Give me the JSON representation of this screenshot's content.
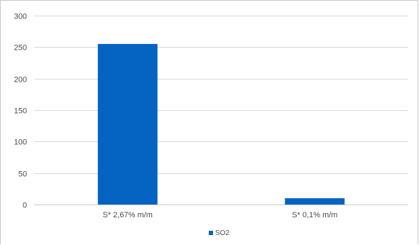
{
  "chart_data": {
    "type": "bar",
    "categories": [
      "S* 2,67% m/m",
      "S* 0,1% m/m"
    ],
    "series": [
      {
        "name": "SO2",
        "values": [
          255,
          10
        ]
      }
    ],
    "title": "",
    "xlabel": "",
    "ylabel": "",
    "ylim": [
      0,
      300
    ],
    "yticks": [
      0,
      50,
      100,
      150,
      200,
      250,
      300
    ],
    "grid": true,
    "legend": "bottom-center",
    "colors": {
      "bar": "#0563c1",
      "grid": "#d9d9d9",
      "axis": "#c8c8c8",
      "text": "#4a4a4a"
    }
  }
}
